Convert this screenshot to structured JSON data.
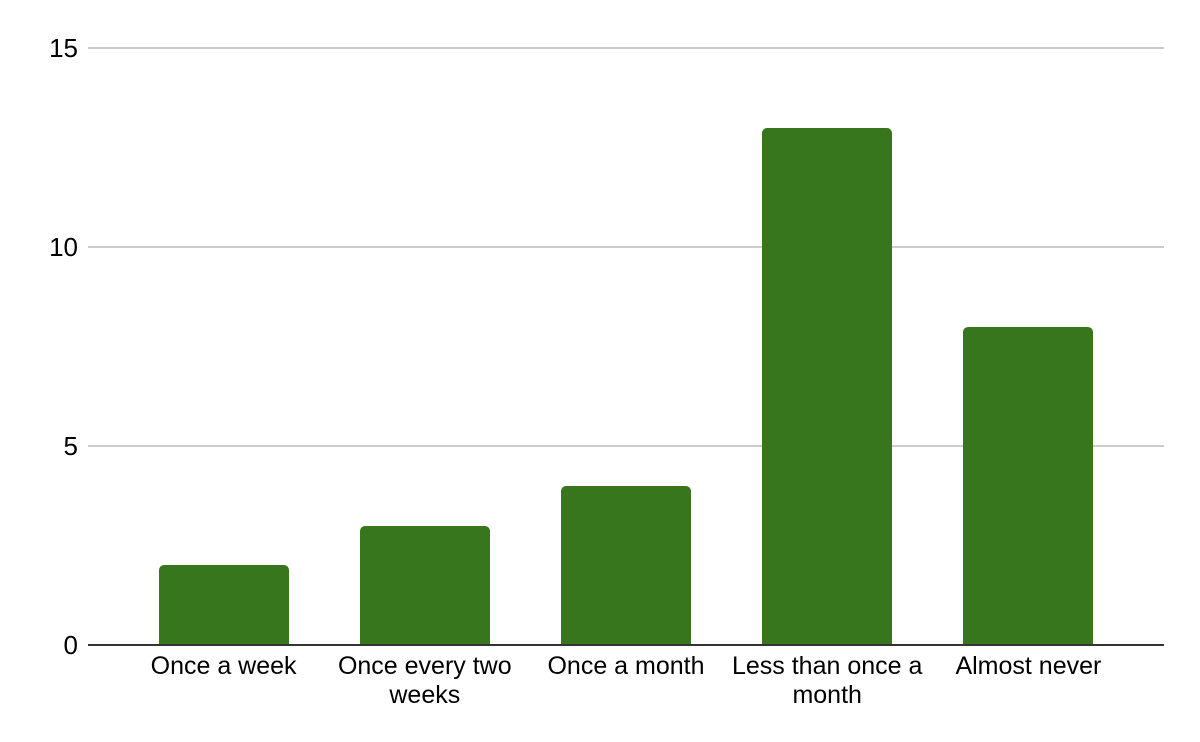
{
  "chart_data": {
    "type": "bar",
    "categories": [
      "Once a week",
      "Once every two weeks",
      "Once a month",
      "Less than once a month",
      "Almost never"
    ],
    "values": [
      2,
      3,
      4,
      13,
      8
    ],
    "title": "",
    "xlabel": "",
    "ylabel": "",
    "ylim": [
      0,
      15
    ],
    "yticks": [
      0,
      5,
      10,
      15
    ],
    "legend": "none",
    "grid": true,
    "colors": {
      "bar": "#38761d",
      "gridline": "#cccccc",
      "axis": "#333333",
      "label": "#000000",
      "background": "#ffffff"
    }
  }
}
